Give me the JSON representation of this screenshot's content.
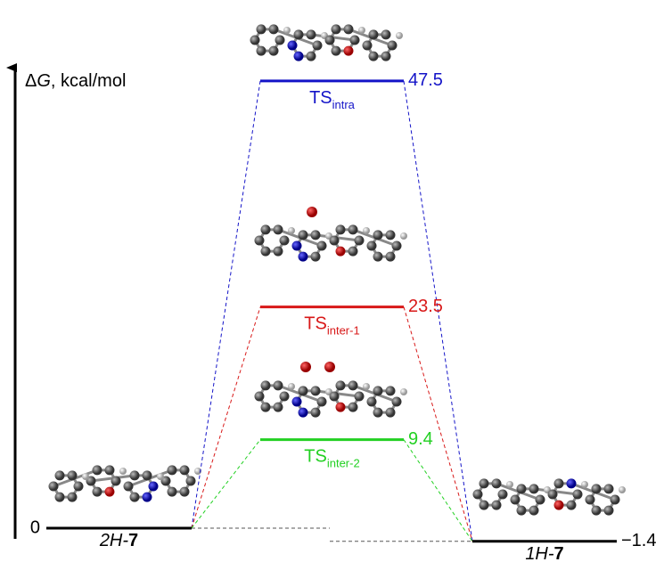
{
  "axis_label": {
    "delta": "Δ",
    "symbol": "G",
    "unit": ", kcal/mol"
  },
  "levels": [
    {
      "kind": "minimum",
      "italic": "2H-",
      "bold": "7",
      "value": 0,
      "color": "#000000"
    },
    {
      "kind": "ts",
      "main": "TS",
      "sub": "intra",
      "value": 47.5,
      "color": "#1414c8"
    },
    {
      "kind": "ts",
      "main": "TS",
      "sub": "inter-1",
      "value": 23.5,
      "color": "#d81818"
    },
    {
      "kind": "ts",
      "main": "TS",
      "sub": "inter-2",
      "value": 9.4,
      "color": "#22d022"
    },
    {
      "kind": "minimum",
      "italic": "1H-",
      "bold": "7",
      "value": -1.4,
      "value_label": "−1.4",
      "color": "#000000"
    }
  ]
}
